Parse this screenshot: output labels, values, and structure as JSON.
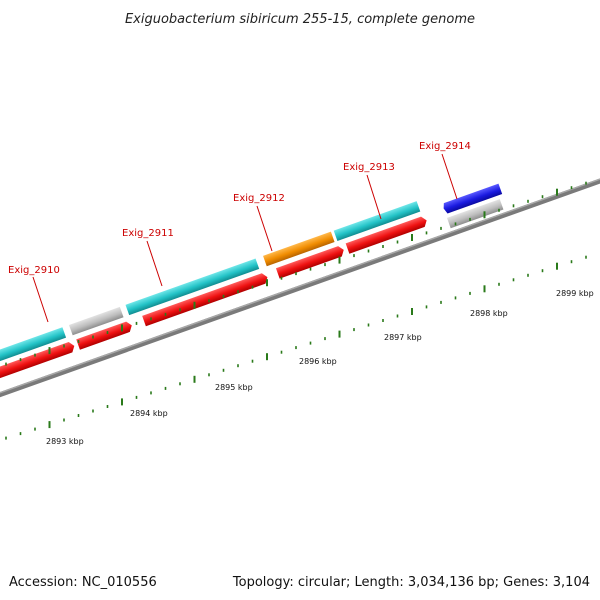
{
  "title": "Exiguobacterium sibiricum 255-15, complete genome",
  "accession": "Accession: NC_010556",
  "summary": "Topology: circular; Length: 3,034,136 bp; Genes: 3,104",
  "gene_labels": [
    "Exig_2910",
    "Exig_2911",
    "Exig_2912",
    "Exig_2913",
    "Exig_2914"
  ],
  "scale_labels": [
    "2893 kbp",
    "2894 kbp",
    "2895 kbp",
    "2896 kbp",
    "2897 kbp",
    "2898 kbp",
    "2899 kbp"
  ],
  "colors": {
    "backbone": "#7a7a7a",
    "cds_forward": "#29c4c8",
    "cds_reverse": "#e81010",
    "gene": "#b8b8b8",
    "rna": "#f08c00",
    "other": "#1a1ae0",
    "label": "#cc0000",
    "tick": "#2a7a1a"
  }
}
